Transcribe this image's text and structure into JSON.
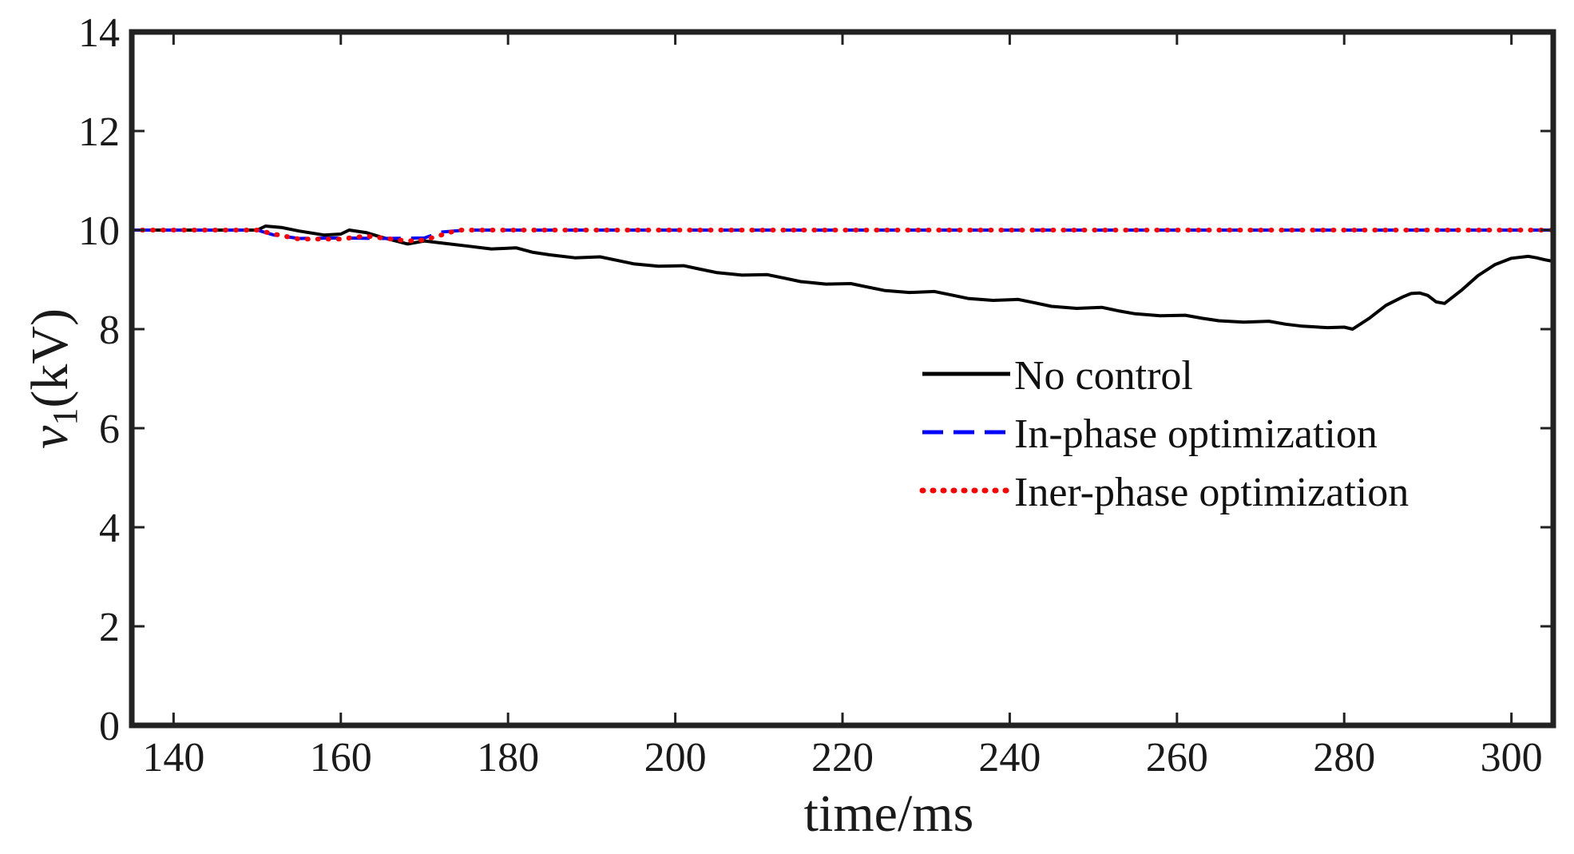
{
  "chart_data": {
    "type": "line",
    "title": "",
    "xlabel": "time/ms",
    "ylabel": {
      "main": "v",
      "sub": "1",
      "unit": "(kV)"
    },
    "xlim": [
      135,
      305
    ],
    "ylim": [
      0,
      14
    ],
    "xticks": [
      140,
      160,
      180,
      200,
      220,
      240,
      260,
      280,
      300
    ],
    "yticks": [
      0,
      2,
      4,
      6,
      8,
      10,
      12,
      14
    ],
    "grid": false,
    "legend_position": "right",
    "series": [
      {
        "name": "No control",
        "color": "#000000",
        "style": "solid",
        "x": [
          135,
          150,
          151,
          153,
          155,
          158,
          160,
          161,
          163,
          165,
          168,
          170,
          172,
          175,
          178,
          181,
          183,
          185,
          188,
          191,
          193,
          195,
          198,
          201,
          203,
          205,
          208,
          211,
          213,
          215,
          218,
          221,
          223,
          225,
          228,
          231,
          233,
          235,
          238,
          241,
          243,
          245,
          248,
          251,
          253,
          255,
          258,
          261,
          263,
          265,
          268,
          271,
          273,
          275,
          278,
          280,
          281,
          283,
          285,
          287,
          288,
          289,
          290,
          291,
          292,
          294,
          296,
          298,
          300,
          302,
          303,
          304,
          305
        ],
        "y": [
          10.0,
          10.0,
          10.08,
          10.05,
          9.98,
          9.9,
          9.92,
          10.0,
          9.95,
          9.85,
          9.72,
          9.78,
          9.74,
          9.68,
          9.62,
          9.64,
          9.55,
          9.5,
          9.44,
          9.46,
          9.39,
          9.32,
          9.27,
          9.28,
          9.21,
          9.14,
          9.09,
          9.1,
          9.03,
          8.96,
          8.91,
          8.92,
          8.85,
          8.78,
          8.74,
          8.76,
          8.69,
          8.62,
          8.58,
          8.6,
          8.53,
          8.46,
          8.42,
          8.44,
          8.37,
          8.31,
          8.27,
          8.28,
          8.22,
          8.17,
          8.14,
          8.16,
          8.1,
          8.06,
          8.03,
          8.04,
          8.0,
          8.22,
          8.48,
          8.65,
          8.72,
          8.73,
          8.68,
          8.55,
          8.52,
          8.78,
          9.08,
          9.3,
          9.43,
          9.47,
          9.44,
          9.4,
          9.37
        ]
      },
      {
        "name": "In-phase optimization",
        "color": "#0000ff",
        "style": "dashed",
        "x": [
          135,
          150,
          152,
          155,
          160,
          165,
          170,
          172,
          175,
          200,
          250,
          290,
          305
        ],
        "y": [
          10.0,
          10.0,
          9.9,
          9.83,
          9.84,
          9.83,
          9.84,
          9.96,
          10.0,
          10.0,
          10.0,
          10.0,
          10.0
        ]
      },
      {
        "name": "Iner-phase optimization",
        "color": "#ff0000",
        "style": "dotted",
        "x": [
          135,
          150,
          152,
          155,
          160,
          163,
          166,
          168,
          170,
          172,
          174,
          180,
          200,
          250,
          290,
          305
        ],
        "y": [
          10.0,
          10.0,
          9.92,
          9.82,
          9.82,
          9.88,
          9.82,
          9.78,
          9.8,
          9.9,
          10.0,
          10.0,
          10.0,
          10.0,
          10.0,
          10.0
        ]
      }
    ]
  }
}
